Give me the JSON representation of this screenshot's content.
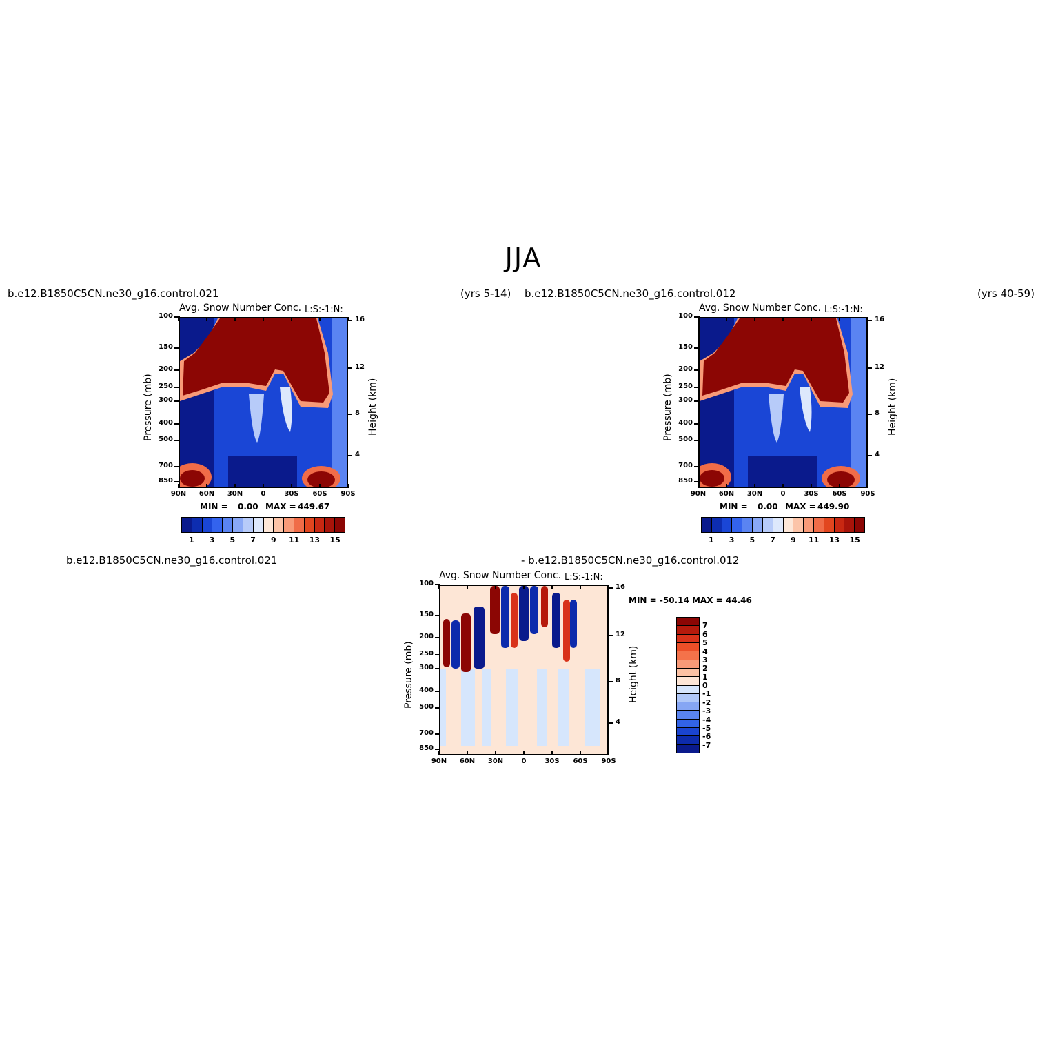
{
  "figure": {
    "title": "JJA"
  },
  "panels": {
    "p1": {
      "case_left": "b.e12.B1850C5CN.ne30_g16.control.021",
      "case_right": "(yrs 5-14)",
      "variable": "Avg. Snow Number Conc.",
      "lr": "L:S:-1:N:",
      "min_label": "MIN =",
      "min_value": "0.00",
      "max_label": "MAX =",
      "max_value": "449.67"
    },
    "p2": {
      "case_left": "b.e12.B1850C5CN.ne30_g16.control.012",
      "case_right": "(yrs 40-59)",
      "variable": "Avg. Snow Number Conc.",
      "lr": "L:S:-1:N:",
      "min_label": "MIN =",
      "min_value": "0.00",
      "max_label": "MAX =",
      "max_value": "449.90"
    },
    "p3": {
      "case_left": "b.e12.B1850C5CN.ne30_g16.control.021",
      "case_right": "- b.e12.B1850C5CN.ne30_g16.control.012",
      "variable": "Avg. Snow Number Conc.",
      "lr": "L:S:-1:N:",
      "stats": "MIN = -50.14   MAX =  44.46"
    }
  },
  "axes": {
    "ylabel": "Pressure (mb)",
    "ylabel_right": "Height (km)",
    "x_ticks": [
      "90N",
      "60N",
      "30N",
      "0",
      "30S",
      "60S",
      "90S"
    ],
    "y_ticks": [
      "100",
      "150",
      "200",
      "250",
      "300",
      "400",
      "500",
      "700",
      "850"
    ],
    "y_ticks_right": [
      "16",
      "12",
      "8",
      "4"
    ]
  },
  "colorbars": {
    "field_labels": [
      "1",
      "3",
      "5",
      "7",
      "9",
      "11",
      "13",
      "15"
    ],
    "field_colors": [
      "#0a1a8c",
      "#0d2db0",
      "#1a46d6",
      "#3363ee",
      "#5a84f2",
      "#89a8f6",
      "#b7cbf9",
      "#dde8fc",
      "#fde7d8",
      "#fcc4a8",
      "#f89a78",
      "#f06c48",
      "#e2461f",
      "#c82812",
      "#a8140a",
      "#8c0604"
    ],
    "diff_labels": [
      "7",
      "6",
      "5",
      "4",
      "3",
      "2",
      "1",
      "0",
      "-1",
      "-2",
      "-3",
      "-4",
      "-5",
      "-6",
      "-7"
    ],
    "diff_colors": [
      "#8c0604",
      "#b51a0c",
      "#d8321a",
      "#ec4f28",
      "#f4724a",
      "#f89a78",
      "#fcc2a4",
      "#fde6d6",
      "#d6e6fc",
      "#b0c8f8",
      "#86a6f4",
      "#5a84f0",
      "#3263e6",
      "#1a44d0",
      "#0d2bac",
      "#0a1a8c"
    ]
  },
  "chart_data": [
    {
      "type": "heatmap",
      "title": "Avg. Snow Number Conc.",
      "subtitle": "b.e12.B1850C5CN.ne30_g16.control.021 (yrs 5-14)",
      "season": "JJA",
      "xlabel": "",
      "ylabel": "Pressure (mb)",
      "ylabel_right": "Height (km)",
      "x_ticks": [
        "90N",
        "60N",
        "30N",
        "0",
        "30S",
        "60S",
        "90S"
      ],
      "y_ticks": [
        100,
        150,
        200,
        250,
        300,
        400,
        500,
        700,
        850
      ],
      "y_ticks_right_km": [
        16,
        12,
        8,
        4
      ],
      "y_scale": "log-pressure",
      "levels": [
        1,
        3,
        5,
        7,
        9,
        11,
        13,
        15
      ],
      "min": 0.0,
      "max": 449.67
    },
    {
      "type": "heatmap",
      "title": "Avg. Snow Number Conc.",
      "subtitle": "b.e12.B1850C5CN.ne30_g16.control.012 (yrs 40-59)",
      "season": "JJA",
      "xlabel": "",
      "ylabel": "Pressure (mb)",
      "ylabel_right": "Height (km)",
      "x_ticks": [
        "90N",
        "60N",
        "30N",
        "0",
        "30S",
        "60S",
        "90S"
      ],
      "y_ticks": [
        100,
        150,
        200,
        250,
        300,
        400,
        500,
        700,
        850
      ],
      "y_ticks_right_km": [
        16,
        12,
        8,
        4
      ],
      "y_scale": "log-pressure",
      "levels": [
        1,
        3,
        5,
        7,
        9,
        11,
        13,
        15
      ],
      "min": 0.0,
      "max": 449.9
    },
    {
      "type": "heatmap",
      "title": "Avg. Snow Number Conc.",
      "subtitle": "b.e12.B1850C5CN.ne30_g16.control.021 - b.e12.B1850C5CN.ne30_g16.control.012",
      "season": "JJA",
      "xlabel": "",
      "ylabel": "Pressure (mb)",
      "ylabel_right": "Height (km)",
      "x_ticks": [
        "90N",
        "60N",
        "30N",
        "0",
        "30S",
        "60S",
        "90S"
      ],
      "y_ticks": [
        100,
        150,
        200,
        250,
        300,
        400,
        500,
        700,
        850
      ],
      "y_ticks_right_km": [
        16,
        12,
        8,
        4
      ],
      "y_scale": "log-pressure",
      "levels": [
        -7,
        -6,
        -5,
        -4,
        -3,
        -2,
        -1,
        0,
        1,
        2,
        3,
        4,
        5,
        6,
        7
      ],
      "min": -50.14,
      "max": 44.46
    }
  ]
}
